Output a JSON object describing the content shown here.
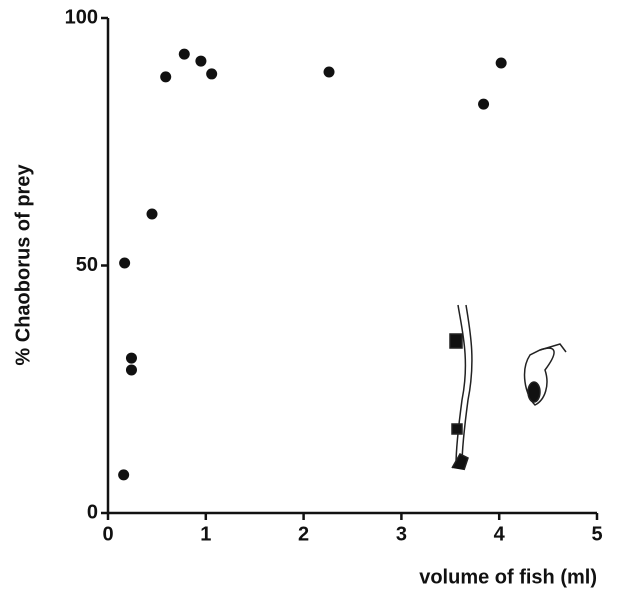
{
  "chart_data": {
    "type": "scatter",
    "x_label": "volume of fish (ml)",
    "y_label": "% Chaoborus of prey",
    "x": [
      0.16,
      0.17,
      0.24,
      0.24,
      0.45,
      0.59,
      0.78,
      0.95,
      1.06,
      2.26,
      3.84,
      4.02
    ],
    "values": [
      7.7,
      50.5,
      31.3,
      28.9,
      60.4,
      88.1,
      92.7,
      91.3,
      88.7,
      89.1,
      82.6,
      90.9
    ],
    "color": "#111111",
    "xlim": [
      0,
      5
    ],
    "xticks": [
      0,
      1,
      2,
      3,
      4,
      5
    ],
    "ylim": [
      0,
      100
    ],
    "yticks": [
      0,
      50,
      100
    ]
  }
}
